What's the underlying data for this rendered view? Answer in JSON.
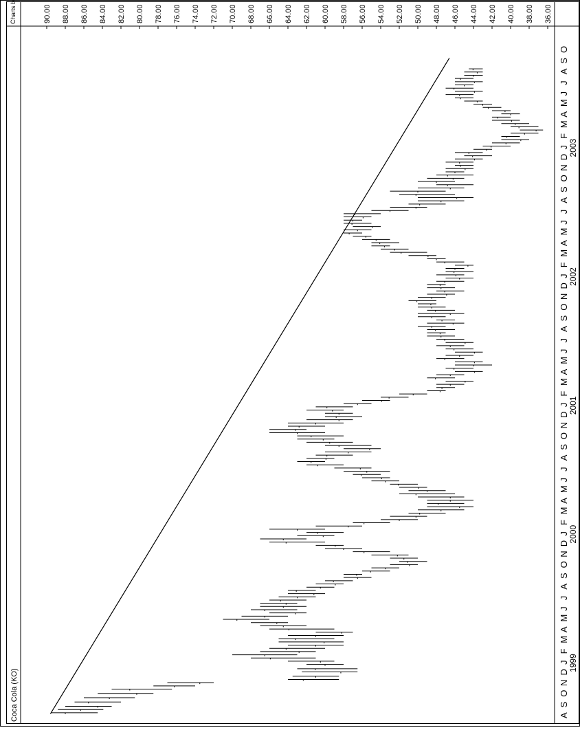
{
  "chart_data": {
    "type": "bar",
    "title": "Coca Cola (KO)",
    "credit": "Charts by D. Kranyak",
    "orientation": "rotated-90-clockwise",
    "price_axis": {
      "ticks": [
        "90.00",
        "88.00",
        "86.00",
        "84.00",
        "82.00",
        "80.00",
        "78.00",
        "76.00",
        "74.00",
        "72.00",
        "70.00",
        "68.00",
        "66.00",
        "64.00",
        "62.00",
        "60.00",
        "58.00",
        "56.00",
        "54.00",
        "52.00",
        "50.00",
        "48.00",
        "46.00",
        "44.00",
        "42.00",
        "40.00",
        "38.00",
        "36.00"
      ],
      "range": [
        35,
        91
      ]
    },
    "time_axis": {
      "months": [
        "A",
        "S",
        "O",
        "N",
        "D",
        "J",
        "F",
        "M",
        "A",
        "M",
        "J",
        "J",
        "A",
        "S",
        "O",
        "N",
        "D",
        "J",
        "F",
        "M",
        "A",
        "M",
        "J",
        "J",
        "A",
        "S",
        "O",
        "N",
        "D",
        "J",
        "F",
        "M",
        "A",
        "M",
        "J",
        "J",
        "A",
        "S",
        "O",
        "N",
        "D",
        "J",
        "F",
        "M",
        "A",
        "M",
        "J",
        "J",
        "A",
        "S",
        "O",
        "N",
        "D",
        "J",
        "F",
        "M",
        "A",
        "M",
        "J",
        "J",
        "A",
        "S",
        "O"
      ],
      "years": [
        {
          "label": "1999",
          "month_index": 5
        },
        {
          "label": "2000",
          "month_index": 17
        },
        {
          "label": "2001",
          "month_index": 29
        },
        {
          "label": "2002",
          "month_index": 41
        },
        {
          "label": "2003",
          "month_index": 53
        }
      ]
    },
    "trendline": {
      "start": {
        "month": 0.1,
        "price": 89.6
      },
      "end": {
        "month": 61.2,
        "price": 46.6
      }
    },
    "weekly_ranges": [
      {
        "m": 0.2,
        "low": 84.5,
        "high": 89.5
      },
      {
        "m": 0.5,
        "low": 83.9,
        "high": 88.8
      },
      {
        "m": 0.8,
        "low": 83.0,
        "high": 88.0
      },
      {
        "m": 1.2,
        "low": 82.0,
        "high": 87.0
      },
      {
        "m": 1.6,
        "low": 80.5,
        "high": 86.0
      },
      {
        "m": 2.0,
        "low": 78.5,
        "high": 84.5
      },
      {
        "m": 2.4,
        "low": 76.5,
        "high": 83.0
      },
      {
        "m": 2.7,
        "low": 74.0,
        "high": 78.5
      },
      {
        "m": 3.0,
        "low": 72.0,
        "high": 77.0
      },
      {
        "m": 3.3,
        "low": 58.5,
        "high": 64.0
      },
      {
        "m": 3.6,
        "low": 58.5,
        "high": 63.5
      },
      {
        "m": 4.0,
        "low": 56.5,
        "high": 62.5
      },
      {
        "m": 4.3,
        "low": 56.5,
        "high": 63.0
      },
      {
        "m": 4.7,
        "low": 58.0,
        "high": 62.0
      },
      {
        "m": 5.0,
        "low": 59.0,
        "high": 64.0
      },
      {
        "m": 5.3,
        "low": 61.0,
        "high": 68.0
      },
      {
        "m": 5.6,
        "low": 63.0,
        "high": 70.0
      },
      {
        "m": 5.9,
        "low": 61.0,
        "high": 67.0
      },
      {
        "m": 6.2,
        "low": 60.0,
        "high": 66.0
      },
      {
        "m": 6.5,
        "low": 58.0,
        "high": 64.0
      },
      {
        "m": 6.8,
        "low": 58.0,
        "high": 65.0
      },
      {
        "m": 7.1,
        "low": 59.0,
        "high": 65.0
      },
      {
        "m": 7.4,
        "low": 58.0,
        "high": 64.0
      },
      {
        "m": 7.7,
        "low": 57.0,
        "high": 61.0
      },
      {
        "m": 8.0,
        "low": 59.0,
        "high": 66.0
      },
      {
        "m": 8.3,
        "low": 62.0,
        "high": 67.0
      },
      {
        "m": 8.6,
        "low": 64.0,
        "high": 68.0
      },
      {
        "m": 8.9,
        "low": 66.0,
        "high": 71.0
      },
      {
        "m": 9.2,
        "low": 64.0,
        "high": 69.0
      },
      {
        "m": 9.5,
        "low": 62.0,
        "high": 66.0
      },
      {
        "m": 9.8,
        "low": 63.0,
        "high": 68.0
      },
      {
        "m": 10.1,
        "low": 62.0,
        "high": 67.0
      },
      {
        "m": 10.4,
        "low": 63.0,
        "high": 67.0
      },
      {
        "m": 10.7,
        "low": 62.0,
        "high": 66.0
      },
      {
        "m": 11.0,
        "low": 61.0,
        "high": 65.0
      },
      {
        "m": 11.3,
        "low": 60.0,
        "high": 64.0
      },
      {
        "m": 11.6,
        "low": 61.0,
        "high": 64.0
      },
      {
        "m": 11.9,
        "low": 59.0,
        "high": 62.0
      },
      {
        "m": 12.2,
        "low": 58.0,
        "high": 61.0
      },
      {
        "m": 12.5,
        "low": 57.0,
        "high": 60.0
      },
      {
        "m": 12.8,
        "low": 55.0,
        "high": 58.0
      },
      {
        "m": 13.1,
        "low": 56.0,
        "high": 58.0
      },
      {
        "m": 13.4,
        "low": 53.0,
        "high": 56.0
      },
      {
        "m": 13.7,
        "low": 52.0,
        "high": 55.0
      },
      {
        "m": 14.0,
        "low": 50.0,
        "high": 53.0
      },
      {
        "m": 14.3,
        "low": 49.0,
        "high": 52.0
      },
      {
        "m": 14.6,
        "low": 50.0,
        "high": 53.0
      },
      {
        "m": 14.9,
        "low": 51.0,
        "high": 55.0
      },
      {
        "m": 15.2,
        "low": 53.0,
        "high": 57.0
      },
      {
        "m": 15.5,
        "low": 56.0,
        "high": 60.0
      },
      {
        "m": 15.8,
        "low": 58.0,
        "high": 61.0
      },
      {
        "m": 16.1,
        "low": 60.0,
        "high": 66.0
      },
      {
        "m": 16.4,
        "low": 62.0,
        "high": 67.0
      },
      {
        "m": 16.7,
        "low": 59.0,
        "high": 63.0
      },
      {
        "m": 17.0,
        "low": 58.0,
        "high": 62.0
      },
      {
        "m": 17.3,
        "low": 60.0,
        "high": 66.0
      },
      {
        "m": 17.6,
        "low": 56.0,
        "high": 61.0
      },
      {
        "m": 17.9,
        "low": 53.0,
        "high": 57.0
      },
      {
        "m": 18.2,
        "low": 50.0,
        "high": 54.0
      },
      {
        "m": 18.5,
        "low": 49.0,
        "high": 53.0
      },
      {
        "m": 18.8,
        "low": 47.0,
        "high": 51.0
      },
      {
        "m": 19.1,
        "low": 45.0,
        "high": 50.0
      },
      {
        "m": 19.4,
        "low": 44.0,
        "high": 49.0
      },
      {
        "m": 19.7,
        "low": 45.0,
        "high": 49.0
      },
      {
        "m": 20.0,
        "low": 44.0,
        "high": 49.0
      },
      {
        "m": 20.3,
        "low": 45.0,
        "high": 50.0
      },
      {
        "m": 20.6,
        "low": 46.0,
        "high": 52.0
      },
      {
        "m": 20.9,
        "low": 47.0,
        "high": 51.0
      },
      {
        "m": 21.2,
        "low": 49.0,
        "high": 52.0
      },
      {
        "m": 21.5,
        "low": 50.0,
        "high": 53.0
      },
      {
        "m": 21.8,
        "low": 52.0,
        "high": 55.0
      },
      {
        "m": 22.1,
        "low": 53.0,
        "high": 56.0
      },
      {
        "m": 22.4,
        "low": 54.0,
        "high": 57.0
      },
      {
        "m": 22.7,
        "low": 53.0,
        "high": 58.0
      },
      {
        "m": 23.0,
        "low": 55.0,
        "high": 59.0
      },
      {
        "m": 23.3,
        "low": 58.0,
        "high": 62.0
      },
      {
        "m": 23.6,
        "low": 60.0,
        "high": 63.0
      },
      {
        "m": 23.9,
        "low": 59.0,
        "high": 62.0
      },
      {
        "m": 24.2,
        "low": 57.0,
        "high": 61.0
      },
      {
        "m": 24.5,
        "low": 55.0,
        "high": 60.0
      },
      {
        "m": 24.8,
        "low": 54.0,
        "high": 58.0
      },
      {
        "m": 25.1,
        "low": 55.0,
        "high": 60.0
      },
      {
        "m": 25.4,
        "low": 57.0,
        "high": 62.0
      },
      {
        "m": 25.7,
        "low": 59.0,
        "high": 63.0
      },
      {
        "m": 26.0,
        "low": 58.0,
        "high": 63.0
      },
      {
        "m": 26.3,
        "low": 60.0,
        "high": 66.0
      },
      {
        "m": 26.6,
        "low": 62.0,
        "high": 66.0
      },
      {
        "m": 26.9,
        "low": 60.0,
        "high": 64.0
      },
      {
        "m": 27.2,
        "low": 58.0,
        "high": 64.0
      },
      {
        "m": 27.5,
        "low": 57.0,
        "high": 62.0
      },
      {
        "m": 27.8,
        "low": 56.0,
        "high": 60.0
      },
      {
        "m": 28.1,
        "low": 57.0,
        "high": 60.0
      },
      {
        "m": 28.4,
        "low": 58.0,
        "high": 62.0
      },
      {
        "m": 28.7,
        "low": 57.0,
        "high": 61.0
      },
      {
        "m": 29.0,
        "low": 55.0,
        "high": 58.0
      },
      {
        "m": 29.3,
        "low": 53.0,
        "high": 56.0
      },
      {
        "m": 29.6,
        "low": 51.0,
        "high": 54.0
      },
      {
        "m": 29.9,
        "low": 49.0,
        "high": 52.0
      },
      {
        "m": 30.2,
        "low": 47.0,
        "high": 49.0
      },
      {
        "m": 30.5,
        "low": 46.0,
        "high": 48.0
      },
      {
        "m": 30.8,
        "low": 45.0,
        "high": 48.0
      },
      {
        "m": 31.1,
        "low": 44.0,
        "high": 47.0
      },
      {
        "m": 31.4,
        "low": 46.0,
        "high": 49.0
      },
      {
        "m": 31.7,
        "low": 45.0,
        "high": 48.0
      },
      {
        "m": 32.0,
        "low": 43.0,
        "high": 46.0
      },
      {
        "m": 32.3,
        "low": 44.0,
        "high": 47.0
      },
      {
        "m": 32.6,
        "low": 42.0,
        "high": 46.0
      },
      {
        "m": 32.9,
        "low": 43.0,
        "high": 46.0
      },
      {
        "m": 33.2,
        "low": 45.0,
        "high": 48.0
      },
      {
        "m": 33.5,
        "low": 44.0,
        "high": 47.0
      },
      {
        "m": 33.8,
        "low": 43.0,
        "high": 46.0
      },
      {
        "m": 34.1,
        "low": 44.0,
        "high": 47.0
      },
      {
        "m": 34.4,
        "low": 45.0,
        "high": 48.0
      },
      {
        "m": 34.7,
        "low": 44.0,
        "high": 47.0
      },
      {
        "m": 35.0,
        "low": 45.0,
        "high": 48.0
      },
      {
        "m": 35.3,
        "low": 46.0,
        "high": 49.0
      },
      {
        "m": 35.6,
        "low": 47.0,
        "high": 49.0
      },
      {
        "m": 35.9,
        "low": 46.0,
        "high": 49.0
      },
      {
        "m": 36.2,
        "low": 47.0,
        "high": 50.0
      },
      {
        "m": 36.5,
        "low": 45.0,
        "high": 49.0
      },
      {
        "m": 36.8,
        "low": 46.0,
        "high": 48.0
      },
      {
        "m": 37.1,
        "low": 47.0,
        "high": 50.0
      },
      {
        "m": 37.4,
        "low": 45.0,
        "high": 50.0
      },
      {
        "m": 37.7,
        "low": 46.0,
        "high": 49.0
      },
      {
        "m": 38.0,
        "low": 47.0,
        "high": 50.0
      },
      {
        "m": 38.3,
        "low": 48.0,
        "high": 50.0
      },
      {
        "m": 38.6,
        "low": 48.0,
        "high": 51.0
      },
      {
        "m": 38.9,
        "low": 47.0,
        "high": 50.0
      },
      {
        "m": 39.2,
        "low": 46.0,
        "high": 49.0
      },
      {
        "m": 39.5,
        "low": 45.0,
        "high": 48.0
      },
      {
        "m": 39.8,
        "low": 46.0,
        "high": 49.0
      },
      {
        "m": 40.1,
        "low": 47.0,
        "high": 49.0
      },
      {
        "m": 40.4,
        "low": 45.0,
        "high": 48.0
      },
      {
        "m": 40.7,
        "low": 44.0,
        "high": 47.0
      },
      {
        "m": 41.0,
        "low": 45.0,
        "high": 48.0
      },
      {
        "m": 41.3,
        "low": 44.0,
        "high": 47.0
      },
      {
        "m": 41.6,
        "low": 45.0,
        "high": 47.0
      },
      {
        "m": 41.9,
        "low": 44.0,
        "high": 46.0
      },
      {
        "m": 42.2,
        "low": 45.0,
        "high": 48.0
      },
      {
        "m": 42.5,
        "low": 47.0,
        "high": 49.0
      },
      {
        "m": 42.8,
        "low": 48.0,
        "high": 51.0
      },
      {
        "m": 43.1,
        "low": 49.0,
        "high": 53.0
      },
      {
        "m": 43.4,
        "low": 51.0,
        "high": 54.0
      },
      {
        "m": 43.7,
        "low": 53.0,
        "high": 55.0
      },
      {
        "m": 44.0,
        "low": 52.0,
        "high": 55.0
      },
      {
        "m": 44.3,
        "low": 53.0,
        "high": 56.0
      },
      {
        "m": 44.6,
        "low": 55.0,
        "high": 57.0
      },
      {
        "m": 44.9,
        "low": 56.0,
        "high": 58.0
      },
      {
        "m": 45.2,
        "low": 55.0,
        "high": 58.0
      },
      {
        "m": 45.5,
        "low": 54.0,
        "high": 57.0
      },
      {
        "m": 45.8,
        "low": 55.0,
        "high": 58.0
      },
      {
        "m": 46.1,
        "low": 56.0,
        "high": 58.0
      },
      {
        "m": 46.4,
        "low": 55.0,
        "high": 58.0
      },
      {
        "m": 46.7,
        "low": 54.0,
        "high": 58.0
      },
      {
        "m": 47.0,
        "low": 51.0,
        "high": 55.0
      },
      {
        "m": 47.3,
        "low": 49.0,
        "high": 53.0
      },
      {
        "m": 47.6,
        "low": 47.0,
        "high": 51.0
      },
      {
        "m": 47.9,
        "low": 45.0,
        "high": 50.0
      },
      {
        "m": 48.2,
        "low": 44.0,
        "high": 50.0
      },
      {
        "m": 48.5,
        "low": 46.0,
        "high": 52.0
      },
      {
        "m": 48.8,
        "low": 47.0,
        "high": 53.0
      },
      {
        "m": 49.1,
        "low": 45.0,
        "high": 50.0
      },
      {
        "m": 49.4,
        "low": 44.0,
        "high": 48.0
      },
      {
        "m": 49.7,
        "low": 46.0,
        "high": 50.0
      },
      {
        "m": 50.0,
        "low": 45.0,
        "high": 49.0
      },
      {
        "m": 50.3,
        "low": 44.0,
        "high": 48.0
      },
      {
        "m": 50.6,
        "low": 45.0,
        "high": 47.0
      },
      {
        "m": 50.9,
        "low": 44.0,
        "high": 47.0
      },
      {
        "m": 51.2,
        "low": 44.0,
        "high": 46.0
      },
      {
        "m": 51.5,
        "low": 44.0,
        "high": 47.0
      },
      {
        "m": 51.8,
        "low": 43.0,
        "high": 46.0
      },
      {
        "m": 52.1,
        "low": 42.0,
        "high": 45.0
      },
      {
        "m": 52.4,
        "low": 43.0,
        "high": 46.0
      },
      {
        "m": 52.7,
        "low": 42.0,
        "high": 44.0
      },
      {
        "m": 53.0,
        "low": 40.0,
        "high": 43.0
      },
      {
        "m": 53.3,
        "low": 39.0,
        "high": 42.0
      },
      {
        "m": 53.6,
        "low": 38.0,
        "high": 41.0
      },
      {
        "m": 53.9,
        "low": 39.0,
        "high": 41.0
      },
      {
        "m": 54.2,
        "low": 37.0,
        "high": 40.0
      },
      {
        "m": 54.5,
        "low": 36.5,
        "high": 39.0
      },
      {
        "m": 54.8,
        "low": 37.0,
        "high": 40.0
      },
      {
        "m": 55.1,
        "low": 38.0,
        "high": 41.0
      },
      {
        "m": 55.4,
        "low": 39.0,
        "high": 42.0
      },
      {
        "m": 55.7,
        "low": 40.0,
        "high": 42.0
      },
      {
        "m": 56.0,
        "low": 39.0,
        "high": 41.0
      },
      {
        "m": 56.3,
        "low": 40.0,
        "high": 42.0
      },
      {
        "m": 56.6,
        "low": 41.0,
        "high": 43.0
      },
      {
        "m": 56.9,
        "low": 42.0,
        "high": 44.0
      },
      {
        "m": 57.2,
        "low": 43.0,
        "high": 45.0
      },
      {
        "m": 57.5,
        "low": 44.0,
        "high": 46.0
      },
      {
        "m": 57.8,
        "low": 44.0,
        "high": 47.0
      },
      {
        "m": 58.1,
        "low": 43.0,
        "high": 46.0
      },
      {
        "m": 58.4,
        "low": 44.0,
        "high": 47.0
      },
      {
        "m": 58.7,
        "low": 44.0,
        "high": 46.0
      },
      {
        "m": 59.0,
        "low": 43.0,
        "high": 46.0
      },
      {
        "m": 59.3,
        "low": 44.0,
        "high": 46.0
      },
      {
        "m": 59.6,
        "low": 43.0,
        "high": 45.0
      },
      {
        "m": 59.9,
        "low": 43.0,
        "high": 45.0
      },
      {
        "m": 60.2,
        "low": 43.0,
        "high": 44.5
      }
    ]
  }
}
